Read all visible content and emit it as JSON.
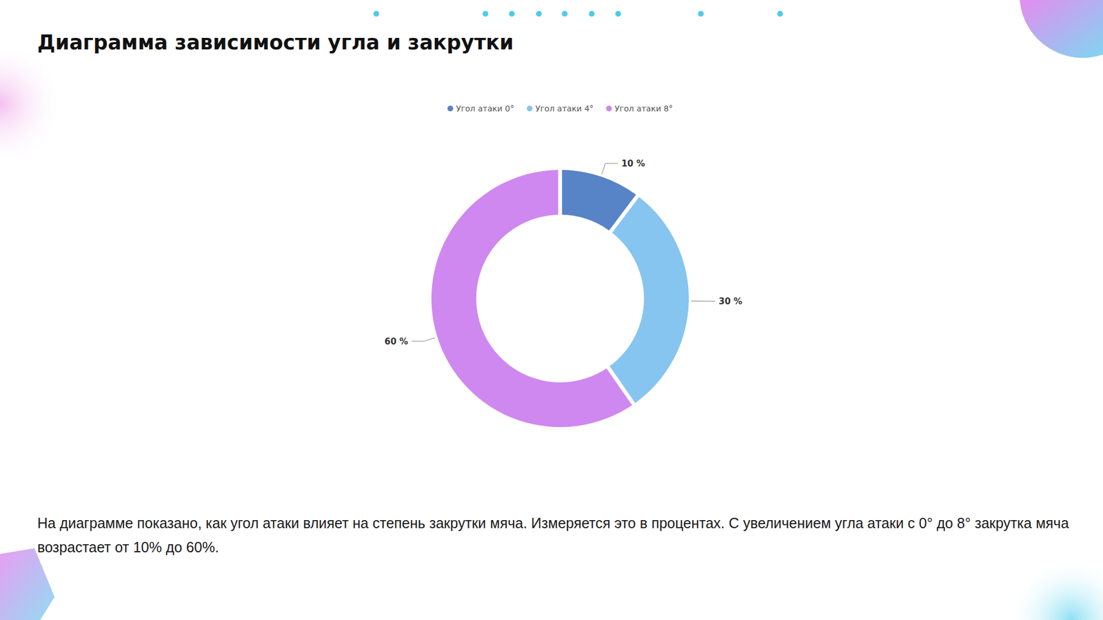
{
  "chart_data": {
    "type": "pie",
    "title": "Диаграмма зависимости угла и закрутки",
    "categories": [
      "Угол атаки 0°",
      "Угол атаки 4°",
      "Угол атаки 8°"
    ],
    "values": [
      10,
      30,
      60
    ],
    "value_labels": [
      "10 %",
      "30 %",
      "60 %"
    ],
    "colors": [
      "#5783c7",
      "#86c5ef",
      "#cf88ef"
    ],
    "data_labels": true,
    "legend": "top",
    "annotations": [
      "На диаграмме показано, как угол атаки влияет на степень закрутки мяча. Измеряется это в процентах. С увеличением угла атаки с 0° до 8° закрутка мяча возрастает от 10% до 60%."
    ]
  }
}
